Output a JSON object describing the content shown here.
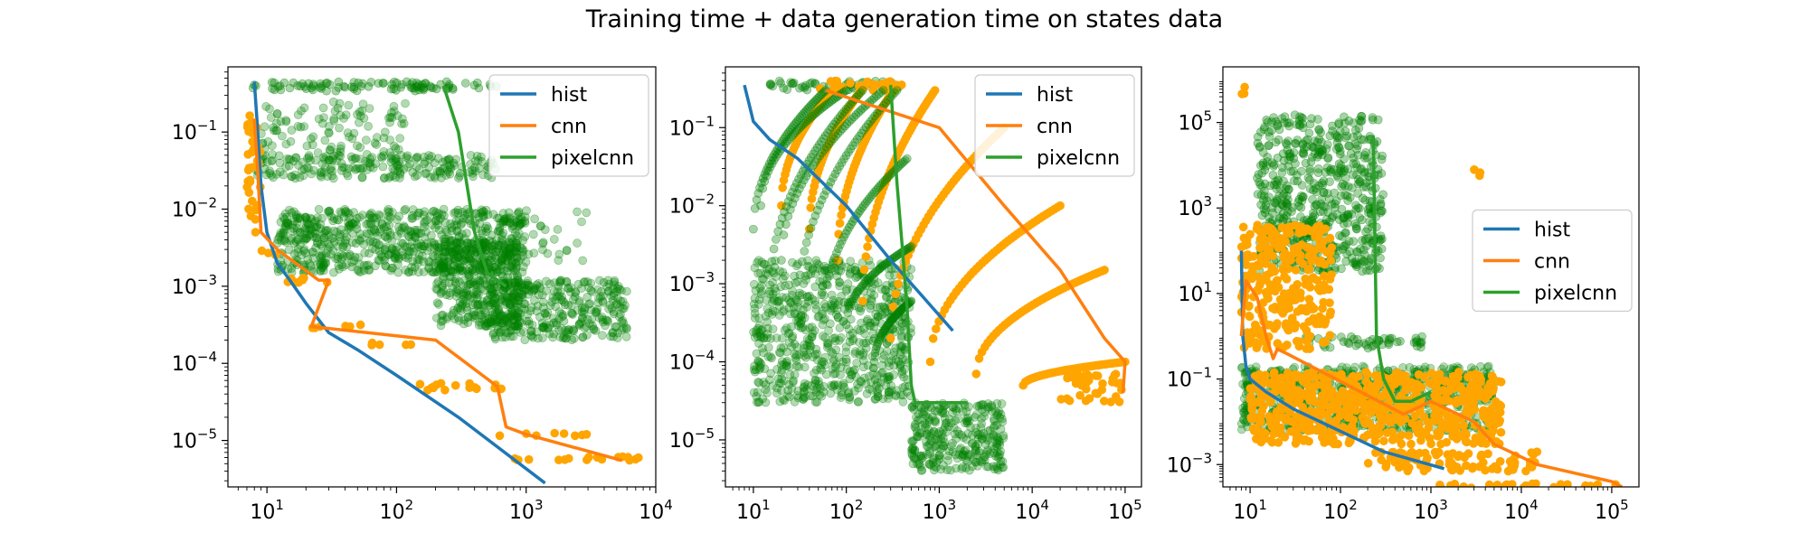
{
  "title": "Training time + data generation time on states data",
  "colors": {
    "hist": "#1f77b4",
    "cnn": "#ff7f0e",
    "pixelcnn": "#2ca02c",
    "cnn_points": "#ffa500",
    "pixelcnn_points": "#008000"
  },
  "chart_data": [
    {
      "type": "scatter",
      "xscale": "log",
      "yscale": "log",
      "xlim": [
        5,
        10000
      ],
      "ylim": [
        2.5e-06,
        0.7
      ],
      "xticks": [
        {
          "value": 10,
          "label": "10",
          "exp": "1"
        },
        {
          "value": 100,
          "label": "10",
          "exp": "2"
        },
        {
          "value": 1000,
          "label": "10",
          "exp": "3"
        },
        {
          "value": 10000,
          "label": "10",
          "exp": "4"
        }
      ],
      "yticks": [
        {
          "value": 1e-05,
          "label": "10",
          "exp": "−5"
        },
        {
          "value": 0.0001,
          "label": "10",
          "exp": "−4"
        },
        {
          "value": 0.001,
          "label": "10",
          "exp": "−3"
        },
        {
          "value": 0.01,
          "label": "10",
          "exp": "−2"
        },
        {
          "value": 0.1,
          "label": "10",
          "exp": "−1"
        }
      ],
      "legend": {
        "position": "top-right",
        "entries": [
          "hist",
          "cnn",
          "pixelcnn"
        ]
      },
      "lines": [
        {
          "name": "hist",
          "x": [
            8,
            8.5,
            9,
            10,
            12,
            15,
            20,
            30,
            50,
            100,
            300,
            1400
          ],
          "y": [
            0.45,
            0.1,
            0.02,
            0.005,
            0.002,
            0.0012,
            0.0006,
            0.00025,
            0.00015,
            7e-05,
            2e-05,
            2.8e-06
          ]
        },
        {
          "name": "cnn",
          "x": [
            8,
            8.5,
            9,
            12,
            25,
            30,
            22,
            200,
            600,
            700,
            1000,
            5500
          ],
          "y": [
            0.15,
            0.03,
            0.005,
            0.003,
            0.0012,
            0.0012,
            0.0003,
            0.0002,
            5e-05,
            1.5e-05,
            1.2e-05,
            5.5e-06
          ]
        },
        {
          "name": "pixelcnn",
          "x": [
            230,
            300,
            350,
            400,
            500,
            700
          ],
          "y": [
            0.4,
            0.1,
            0.02,
            0.005,
            0.0015,
            0.001
          ]
        }
      ],
      "point_clusters": [
        {
          "series": "pixelcnn",
          "alpha": 0.35,
          "x": [
            7.5,
            600
          ],
          "y": [
            0.34,
            0.45
          ],
          "density": 0.6
        },
        {
          "series": "pixelcnn",
          "alpha": 0.3,
          "x": [
            8,
            600
          ],
          "y": [
            0.025,
            0.05
          ],
          "density": 0.5
        },
        {
          "series": "pixelcnn",
          "alpha": 0.3,
          "x": [
            9,
            120
          ],
          "y": [
            0.04,
            0.25
          ],
          "density": 0.2
        },
        {
          "series": "pixelcnn",
          "alpha": 0.3,
          "x": [
            12,
            1000
          ],
          "y": [
            0.0015,
            0.01
          ],
          "density": 0.8
        },
        {
          "series": "pixelcnn",
          "alpha": 0.3,
          "x": [
            200,
            900
          ],
          "y": [
            0.0003,
            0.004
          ],
          "density": 0.8
        },
        {
          "series": "pixelcnn",
          "alpha": 0.3,
          "x": [
            500,
            6000
          ],
          "y": [
            0.0002,
            0.0012
          ],
          "density": 0.6
        },
        {
          "series": "pixelcnn",
          "alpha": 0.3,
          "x": [
            900,
            3000
          ],
          "y": [
            0.002,
            0.01
          ],
          "density": 0.1
        },
        {
          "series": "cnn",
          "alpha": 1.0,
          "x": [
            7,
            9
          ],
          "y": [
            0.005,
            0.2
          ],
          "density": 0.3
        },
        {
          "series": "cnn",
          "alpha": 1.0,
          "x": [
            9,
            12
          ],
          "y": [
            0.0025,
            0.003
          ],
          "density": 0.3
        },
        {
          "series": "cnn",
          "alpha": 1.0,
          "x": [
            10,
            30
          ],
          "y": [
            0.0011,
            0.0013
          ],
          "density": 0.3
        },
        {
          "series": "cnn",
          "alpha": 1.0,
          "x": [
            20,
            60
          ],
          "y": [
            0.00028,
            0.00032
          ],
          "density": 0.3
        },
        {
          "series": "cnn",
          "alpha": 1.0,
          "x": [
            60,
            190
          ],
          "y": [
            0.00017,
            0.00019
          ],
          "density": 0.3
        },
        {
          "series": "cnn",
          "alpha": 1.0,
          "x": [
            150,
            650
          ],
          "y": [
            4.5e-05,
            5.5e-05
          ],
          "density": 0.4
        },
        {
          "series": "cnn",
          "alpha": 1.0,
          "x": [
            600,
            3000
          ],
          "y": [
            1.15e-05,
            1.25e-05
          ],
          "density": 0.4
        },
        {
          "series": "cnn",
          "alpha": 1.0,
          "x": [
            800,
            7500
          ],
          "y": [
            5.5e-06,
            6.2e-06
          ],
          "density": 0.5
        }
      ]
    },
    {
      "type": "scatter",
      "xscale": "log",
      "yscale": "log",
      "xlim": [
        5,
        150000
      ],
      "ylim": [
        2.5e-06,
        0.6
      ],
      "xticks": [
        {
          "value": 10,
          "label": "10",
          "exp": "1"
        },
        {
          "value": 100,
          "label": "10",
          "exp": "2"
        },
        {
          "value": 1000,
          "label": "10",
          "exp": "3"
        },
        {
          "value": 10000,
          "label": "10",
          "exp": "4"
        },
        {
          "value": 100000,
          "label": "10",
          "exp": "5"
        }
      ],
      "yticks": [
        {
          "value": 1e-05,
          "label": "10",
          "exp": "−5"
        },
        {
          "value": 0.0001,
          "label": "10",
          "exp": "−4"
        },
        {
          "value": 0.001,
          "label": "10",
          "exp": "−3"
        },
        {
          "value": 0.01,
          "label": "10",
          "exp": "−2"
        },
        {
          "value": 0.1,
          "label": "10",
          "exp": "−1"
        }
      ],
      "legend": {
        "position": "top-right",
        "entries": [
          "hist",
          "cnn",
          "pixelcnn"
        ]
      },
      "lines": [
        {
          "name": "hist",
          "x": [
            8,
            9,
            10,
            15,
            30,
            100,
            300,
            1400
          ],
          "y": [
            0.35,
            0.2,
            0.12,
            0.07,
            0.04,
            0.01,
            0.002,
            0.00025
          ]
        },
        {
          "name": "cnn",
          "x": [
            60,
            1000,
            5000,
            20000,
            60000,
            100000,
            95000
          ],
          "y": [
            0.3,
            0.1,
            0.01,
            0.0015,
            0.0002,
            0.0001,
            4e-05
          ]
        },
        {
          "name": "pixelcnn",
          "x": [
            300,
            350,
            400,
            450,
            500,
            550,
            600,
            2000
          ],
          "y": [
            0.35,
            0.02,
            0.003,
            0.0005,
            5e-05,
            3e-05,
            3e-05,
            3e-05
          ]
        }
      ],
      "curve_groups": [
        {
          "series": "cnn",
          "alpha": 1.0,
          "starts": [
            20,
            40,
            80,
            150,
            300,
            800,
            2500,
            8000
          ],
          "ends": [
            80,
            160,
            350,
            900,
            5000,
            20000,
            60000,
            100000
          ],
          "y_start": [
            0.01,
            0.005,
            0.002,
            0.0006,
            0.0002,
            0.0001,
            7e-05,
            5e-05
          ],
          "y_end": [
            0.35,
            0.35,
            0.35,
            0.3,
            0.1,
            0.01,
            0.0015,
            0.0001
          ]
        },
        {
          "series": "pixelcnn",
          "alpha": 0.35,
          "starts": [
            10,
            12,
            15,
            20,
            30,
            60,
            100,
            200
          ],
          "ends": [
            60,
            100,
            150,
            250,
            350,
            450,
            500,
            500
          ],
          "y_start": [
            0.005,
            0.01,
            0.0008,
            0.002,
            0.0005,
            0.0005,
            0.0003,
            0.0001
          ],
          "y_end": [
            0.3,
            0.3,
            0.3,
            0.3,
            0.3,
            0.04,
            0.003,
            0.0006
          ]
        }
      ],
      "point_clusters": [
        {
          "series": "pixelcnn",
          "alpha": 0.35,
          "x": [
            15,
            400
          ],
          "y": [
            0.3,
            0.4
          ],
          "density": 0.5
        },
        {
          "series": "cnn",
          "alpha": 1.0,
          "x": [
            50,
            400
          ],
          "y": [
            0.3,
            0.4
          ],
          "density": 0.4
        },
        {
          "series": "pixelcnn",
          "alpha": 0.3,
          "x": [
            10,
            500
          ],
          "y": [
            3e-05,
            0.002
          ],
          "density": 0.6
        },
        {
          "series": "pixelcnn",
          "alpha": 0.3,
          "x": [
            500,
            5000
          ],
          "y": [
            4e-06,
            3e-05
          ],
          "density": 0.7
        },
        {
          "series": "cnn",
          "alpha": 1.0,
          "x": [
            20000,
            100000
          ],
          "y": [
            3e-05,
            7e-05
          ],
          "density": 0.3
        }
      ]
    },
    {
      "type": "scatter",
      "xscale": "log",
      "yscale": "log",
      "xlim": [
        5,
        200000
      ],
      "ylim": [
        0.0003,
        2000000
      ],
      "xticks": [
        {
          "value": 10,
          "label": "10",
          "exp": "1"
        },
        {
          "value": 100,
          "label": "10",
          "exp": "2"
        },
        {
          "value": 1000,
          "label": "10",
          "exp": "3"
        },
        {
          "value": 10000,
          "label": "10",
          "exp": "4"
        },
        {
          "value": 100000,
          "label": "10",
          "exp": "5"
        }
      ],
      "yticks": [
        {
          "value": 0.001,
          "label": "10",
          "exp": "−3"
        },
        {
          "value": 0.1,
          "label": "10",
          "exp": "−1"
        },
        {
          "value": 10,
          "label": "10",
          "exp": "1"
        },
        {
          "value": 1000,
          "label": "10",
          "exp": "3"
        },
        {
          "value": 100000,
          "label": "10",
          "exp": "5"
        }
      ],
      "legend": {
        "position": "center-right",
        "entries": [
          "hist",
          "cnn",
          "pixelcnn"
        ]
      },
      "lines": [
        {
          "name": "hist",
          "x": [
            8,
            8.3,
            9,
            10,
            15,
            30,
            100,
            300,
            1400
          ],
          "y": [
            100,
            1,
            0.2,
            0.1,
            0.05,
            0.02,
            0.006,
            0.002,
            0.0008
          ]
        },
        {
          "name": "cnn",
          "x": [
            8,
            9,
            12,
            15,
            18,
            20,
            25,
            500,
            1000,
            3000,
            5000,
            15000,
            100000,
            130000
          ],
          "y": [
            1,
            20,
            8,
            1,
            0.3,
            0.5,
            0.4,
            0.015,
            0.03,
            0.01,
            0.003,
            0.001,
            0.0004,
            0.0003
          ]
        },
        {
          "name": "pixelcnn",
          "x": [
            230,
            250,
            300,
            400,
            600,
            1000
          ],
          "y": [
            50000,
            1,
            0.1,
            0.03,
            0.03,
            0.05
          ]
        }
      ],
      "point_clusters": [
        {
          "series": "cnn",
          "alpha": 1.0,
          "x": [
            8,
            9
          ],
          "y": [
            300000,
            800000
          ],
          "density": 0.02
        },
        {
          "series": "cnn",
          "alpha": 1.0,
          "x": [
            3000,
            3600
          ],
          "y": [
            5000,
            8000
          ],
          "density": 0.02
        },
        {
          "series": "pixelcnn",
          "alpha": 0.35,
          "x": [
            12,
            300
          ],
          "y": [
            30,
            150000
          ],
          "density": 0.45
        },
        {
          "series": "pixelcnn",
          "alpha": 0.35,
          "x": [
            40,
            800
          ],
          "y": [
            0.5,
            1
          ],
          "density": 0.5
        },
        {
          "series": "cnn",
          "alpha": 1.0,
          "x": [
            8,
            80
          ],
          "y": [
            0.5,
            400
          ],
          "density": 0.4
        },
        {
          "series": "pixelcnn",
          "alpha": 0.3,
          "x": [
            8,
            5000
          ],
          "y": [
            0.006,
            0.2
          ],
          "density": 1.0
        },
        {
          "series": "cnn",
          "alpha": 1.0,
          "x": [
            10,
            6000
          ],
          "y": [
            0.003,
            0.15
          ],
          "density": 0.5
        },
        {
          "series": "cnn",
          "alpha": 1.0,
          "x": [
            200,
            15000
          ],
          "y": [
            0.0007,
            0.002
          ],
          "density": 0.4
        },
        {
          "series": "cnn",
          "alpha": 1.0,
          "x": [
            1000,
            130000
          ],
          "y": [
            0.00028,
            0.00036
          ],
          "density": 0.5
        }
      ]
    }
  ]
}
